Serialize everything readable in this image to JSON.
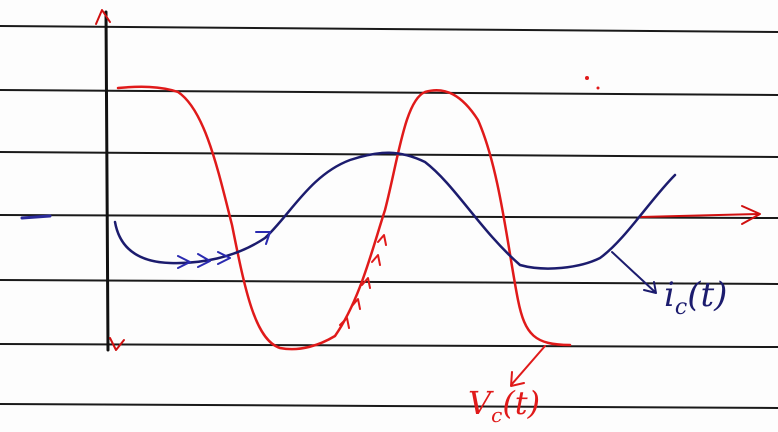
{
  "labels": {
    "current": {
      "base": "i",
      "sub": "c",
      "arg": "(t)"
    },
    "voltage": {
      "base": "V",
      "sub": "c",
      "arg": "(t)"
    }
  }
}
